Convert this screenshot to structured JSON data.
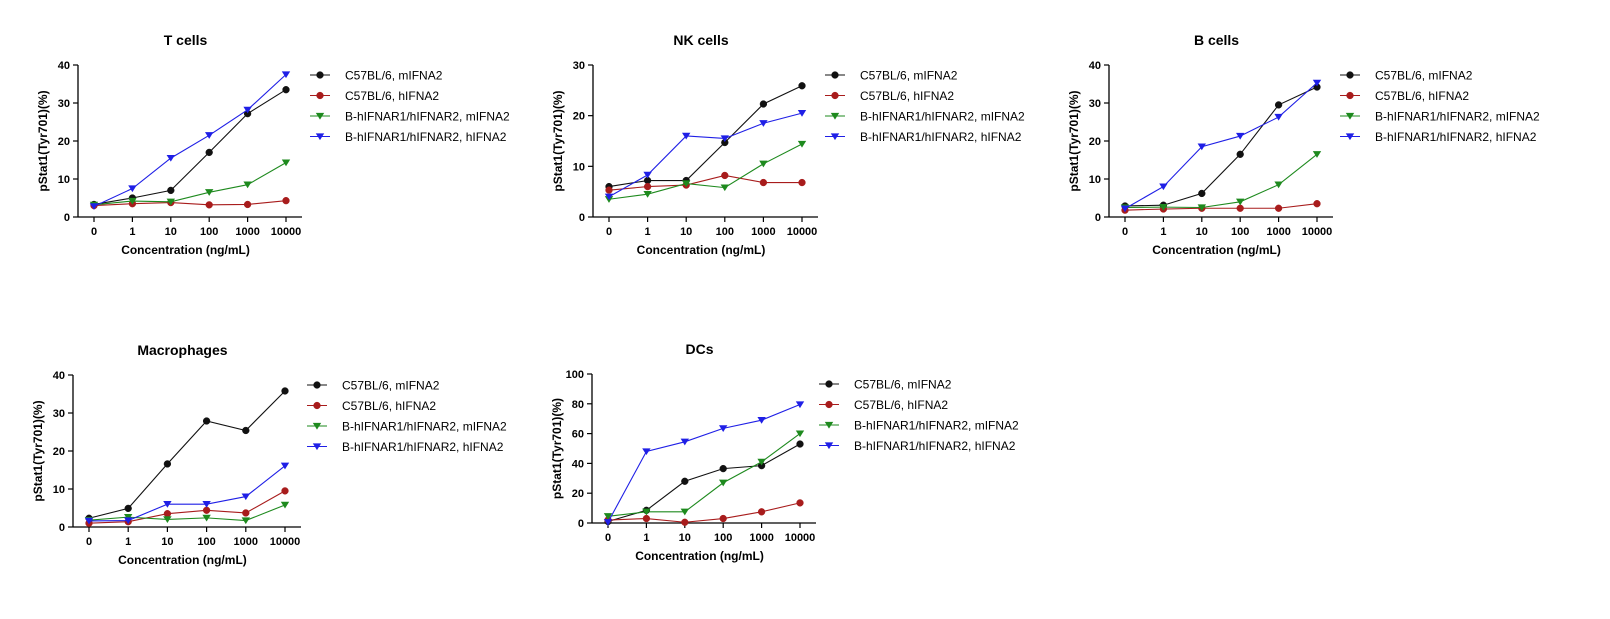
{
  "x_categories": [
    "0",
    "1",
    "10",
    "100",
    "1000",
    "10000"
  ],
  "series_styles": [
    {
      "key": "c57_m",
      "color": "#111111",
      "marker": "circle"
    },
    {
      "key": "c57_h",
      "color": "#a81c1c",
      "marker": "circle"
    },
    {
      "key": "b_m",
      "color": "#1e8a1e",
      "marker": "triangle-down"
    },
    {
      "key": "b_h",
      "color": "#1f1fe6",
      "marker": "triangle-down"
    }
  ],
  "chart_data": [
    {
      "type": "line",
      "title": "T cells",
      "xlabel": "Concentration (ng/mL)",
      "ylabel": "pStat1(Tyr701)(%)",
      "categories": [
        "0",
        "1",
        "10",
        "100",
        "1000",
        "10000"
      ],
      "ylim": [
        0,
        40
      ],
      "yticks": [
        0,
        10,
        20,
        30,
        40
      ],
      "legend_position": "right",
      "series": [
        {
          "name": "C57BL/6, mIFNA2",
          "values": [
            3.3,
            5.0,
            7.0,
            17.0,
            27.2,
            33.5
          ]
        },
        {
          "name": "C57BL/6, hIFNA2",
          "values": [
            3.0,
            3.5,
            3.8,
            3.2,
            3.3,
            4.3
          ]
        },
        {
          "name": "B-hIFNAR1/hIFNAR2, mIFNA2",
          "values": [
            3.2,
            4.2,
            4.0,
            6.5,
            8.5,
            14.3
          ]
        },
        {
          "name": "B-hIFNAR1/hIFNAR2, hIFNA2",
          "values": [
            2.8,
            7.5,
            15.5,
            21.5,
            28.2,
            37.5
          ]
        }
      ]
    },
    {
      "type": "line",
      "title": "NK cells",
      "xlabel": "Concentration (ng/mL)",
      "ylabel": "pStat1(Tyr701)(%)",
      "categories": [
        "0",
        "1",
        "10",
        "100",
        "1000",
        "10000"
      ],
      "ylim": [
        0,
        30
      ],
      "yticks": [
        0,
        10,
        20,
        30
      ],
      "legend_position": "right",
      "series": [
        {
          "name": "C57BL/6, mIFNA2",
          "values": [
            6.0,
            7.2,
            7.2,
            14.7,
            22.3,
            25.9
          ]
        },
        {
          "name": "C57BL/6, hIFNA2",
          "values": [
            5.3,
            6.0,
            6.3,
            8.2,
            6.8,
            6.8
          ]
        },
        {
          "name": "B-hIFNAR1/hIFNAR2, mIFNA2",
          "values": [
            3.5,
            4.5,
            6.6,
            5.8,
            10.5,
            14.4
          ]
        },
        {
          "name": "B-hIFNAR1/hIFNAR2, hIFNA2",
          "values": [
            4.0,
            8.3,
            16.0,
            15.5,
            18.5,
            20.5
          ]
        }
      ]
    },
    {
      "type": "line",
      "title": "B cells",
      "xlabel": "Concentration (ng/mL)",
      "ylabel": "pStat1(Tyr701)(%)",
      "categories": [
        "0",
        "1",
        "10",
        "100",
        "1000",
        "10000"
      ],
      "ylim": [
        0,
        40
      ],
      "yticks": [
        0,
        10,
        20,
        30,
        40
      ],
      "legend_position": "right",
      "series": [
        {
          "name": "C57BL/6, mIFNA2",
          "values": [
            2.9,
            3.1,
            6.2,
            16.5,
            29.5,
            34.2
          ]
        },
        {
          "name": "C57BL/6, hIFNA2",
          "values": [
            1.8,
            2.1,
            2.3,
            2.3,
            2.3,
            3.5
          ]
        },
        {
          "name": "B-hIFNAR1/hIFNAR2, mIFNA2",
          "values": [
            2.5,
            2.6,
            2.5,
            4.0,
            8.5,
            16.5
          ]
        },
        {
          "name": "B-hIFNAR1/hIFNAR2, hIFNA2",
          "values": [
            2.2,
            8.0,
            18.5,
            21.3,
            26.3,
            35.3
          ]
        }
      ]
    },
    {
      "type": "line",
      "title": "Macrophages",
      "xlabel": "Concentration (ng/mL)",
      "ylabel": "pStat1(Tyr701)(%)",
      "categories": [
        "0",
        "1",
        "10",
        "100",
        "1000",
        "10000"
      ],
      "ylim": [
        0,
        40
      ],
      "yticks": [
        0,
        10,
        20,
        30,
        40
      ],
      "legend_position": "right",
      "series": [
        {
          "name": "C57BL/6, mIFNA2",
          "values": [
            2.3,
            4.9,
            16.6,
            27.9,
            25.4,
            35.8
          ]
        },
        {
          "name": "C57BL/6, hIFNA2",
          "values": [
            1.0,
            1.4,
            3.5,
            4.4,
            3.7,
            9.5
          ]
        },
        {
          "name": "B-hIFNAR1/hIFNAR2, mIFNA2",
          "values": [
            1.8,
            2.6,
            2.0,
            2.4,
            1.7,
            5.8
          ]
        },
        {
          "name": "B-hIFNAR1/hIFNAR2, hIFNA2",
          "values": [
            1.6,
            1.7,
            6.0,
            6.0,
            8.0,
            16.1
          ]
        }
      ]
    },
    {
      "type": "line",
      "title": "DCs",
      "xlabel": "Concentration (ng/mL)",
      "ylabel": "pStat1(Tyr701)(%)",
      "categories": [
        "0",
        "1",
        "10",
        "100",
        "1000",
        "10000"
      ],
      "ylim": [
        0,
        100
      ],
      "yticks": [
        0,
        20,
        40,
        60,
        80,
        100
      ],
      "legend_position": "right",
      "series": [
        {
          "name": "C57BL/6, mIFNA2",
          "values": [
            1.0,
            8.5,
            28.0,
            36.5,
            38.5,
            53.0
          ]
        },
        {
          "name": "C57BL/6, hIFNA2",
          "values": [
            2.0,
            3.0,
            0.5,
            3.0,
            7.5,
            13.5
          ]
        },
        {
          "name": "B-hIFNAR1/hIFNAR2, mIFNA2",
          "values": [
            4.5,
            7.5,
            7.5,
            27.0,
            41.0,
            60.0
          ]
        },
        {
          "name": "B-hIFNAR1/hIFNAR2, hIFNA2",
          "values": [
            0.5,
            48.0,
            54.5,
            63.5,
            69.0,
            79.5
          ]
        }
      ]
    }
  ]
}
